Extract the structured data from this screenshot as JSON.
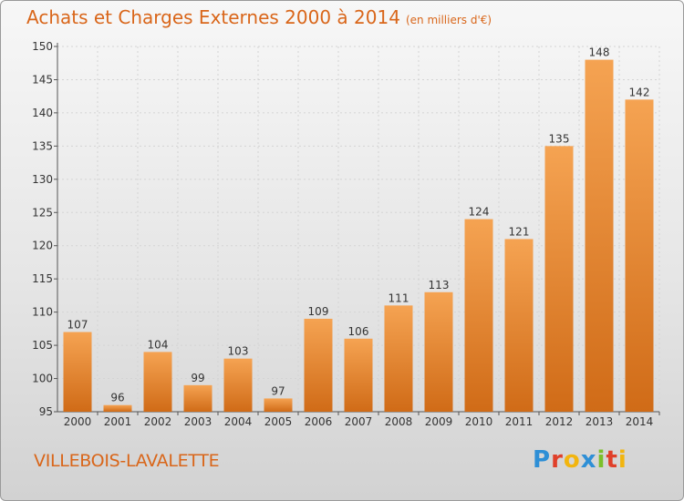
{
  "header": {
    "title": "Achats et Charges Externes 2000 à 2014",
    "unit": "(en milliers d'€)"
  },
  "footer": {
    "commune": "VILLEBOIS-LAVALETTE"
  },
  "logo": {
    "text": "Proxiti",
    "colors": [
      "#2e8fd6",
      "#e0402a",
      "#f2b50f",
      "#2e8fd6",
      "#7bbf2a",
      "#e0402a",
      "#f2b50f"
    ]
  },
  "chart_data": {
    "type": "bar",
    "title": "Achats et Charges Externes 2000 à 2014",
    "subtitle": "(en milliers d'€)",
    "categories": [
      "2000",
      "2001",
      "2002",
      "2003",
      "2004",
      "2005",
      "2006",
      "2007",
      "2008",
      "2009",
      "2010",
      "2011",
      "2012",
      "2013",
      "2014"
    ],
    "values": [
      107,
      96,
      104,
      99,
      103,
      97,
      109,
      106,
      111,
      113,
      124,
      121,
      135,
      148,
      142
    ],
    "ylim": [
      95,
      150
    ],
    "yticks": [
      95,
      100,
      105,
      110,
      115,
      120,
      125,
      130,
      135,
      140,
      145,
      150
    ],
    "grid": true,
    "bar_color_top": "#f5a352",
    "bar_color_bottom": "#d06b17"
  }
}
